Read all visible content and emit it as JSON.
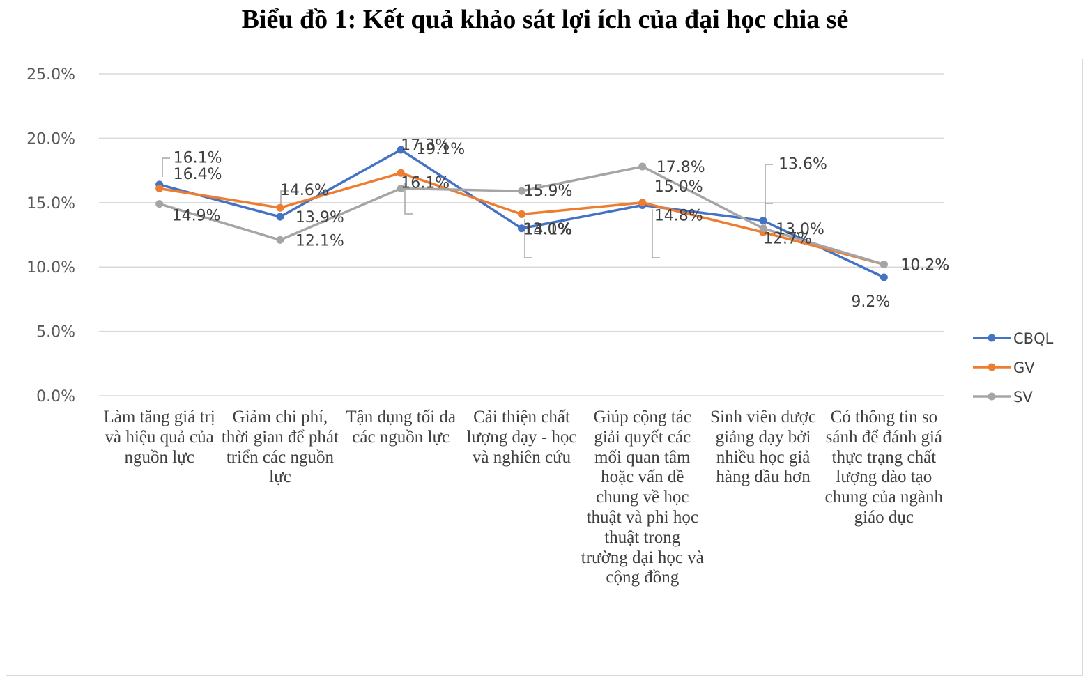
{
  "title": "Biểu đồ 1: Kết quả khảo sát lợi ích của đại học chia sẻ",
  "chart_data": {
    "type": "line",
    "title": "Biểu đồ 1: Kết quả khảo sát lợi ích của đại học chia sẻ",
    "ylim": [
      0,
      25
    ],
    "yticks": [
      "0.0%",
      "5.0%",
      "10.0%",
      "15.0%",
      "20.0%",
      "25.0%"
    ],
    "grid": true,
    "legend_position": "right",
    "categories": [
      "Làm tăng giá trị và hiệu quả của nguồn lực",
      "Giảm chi phí, thời gian để phát triển các nguồn lực",
      "Tận dụng tối đa các nguồn lực",
      "Cải thiện chất lượng dạy - học và nghiên cứu",
      "Giúp cộng tác giải quyết các mối quan tâm hoặc vấn đề chung về học thuật và phi học thuật trong trường đại học và cộng đồng",
      "Sinh viên được giảng dạy bởi nhiều học giả hàng đầu hơn",
      "Có thông tin so sánh để đánh giá thực trạng chất lượng đào tạo chung của ngành giáo dục"
    ],
    "series": [
      {
        "name": "CBQL",
        "color": "#4472c4",
        "values": [
          16.4,
          13.9,
          19.1,
          13.0,
          14.8,
          13.6,
          9.2
        ],
        "labels": [
          "16.4%",
          "13.9%",
          "19.1%",
          "13.0%",
          "14.8%",
          "13.6%",
          "9.2%"
        ]
      },
      {
        "name": "GV",
        "color": "#ed7d31",
        "values": [
          16.1,
          14.6,
          17.3,
          14.1,
          15.0,
          12.7,
          10.2
        ],
        "labels": [
          "16.1%",
          "14.6%",
          "17.3%",
          "14.1%",
          "15.0%",
          "12.7%",
          "10.2%"
        ]
      },
      {
        "name": "SV",
        "color": "#a5a5a5",
        "values": [
          14.9,
          12.1,
          16.1,
          15.9,
          17.8,
          13.0,
          10.2
        ],
        "labels": [
          "14.9%",
          "12.1%",
          "16.1%",
          "15.9%",
          "17.8%",
          "13.0%",
          "10.2%"
        ]
      }
    ]
  }
}
